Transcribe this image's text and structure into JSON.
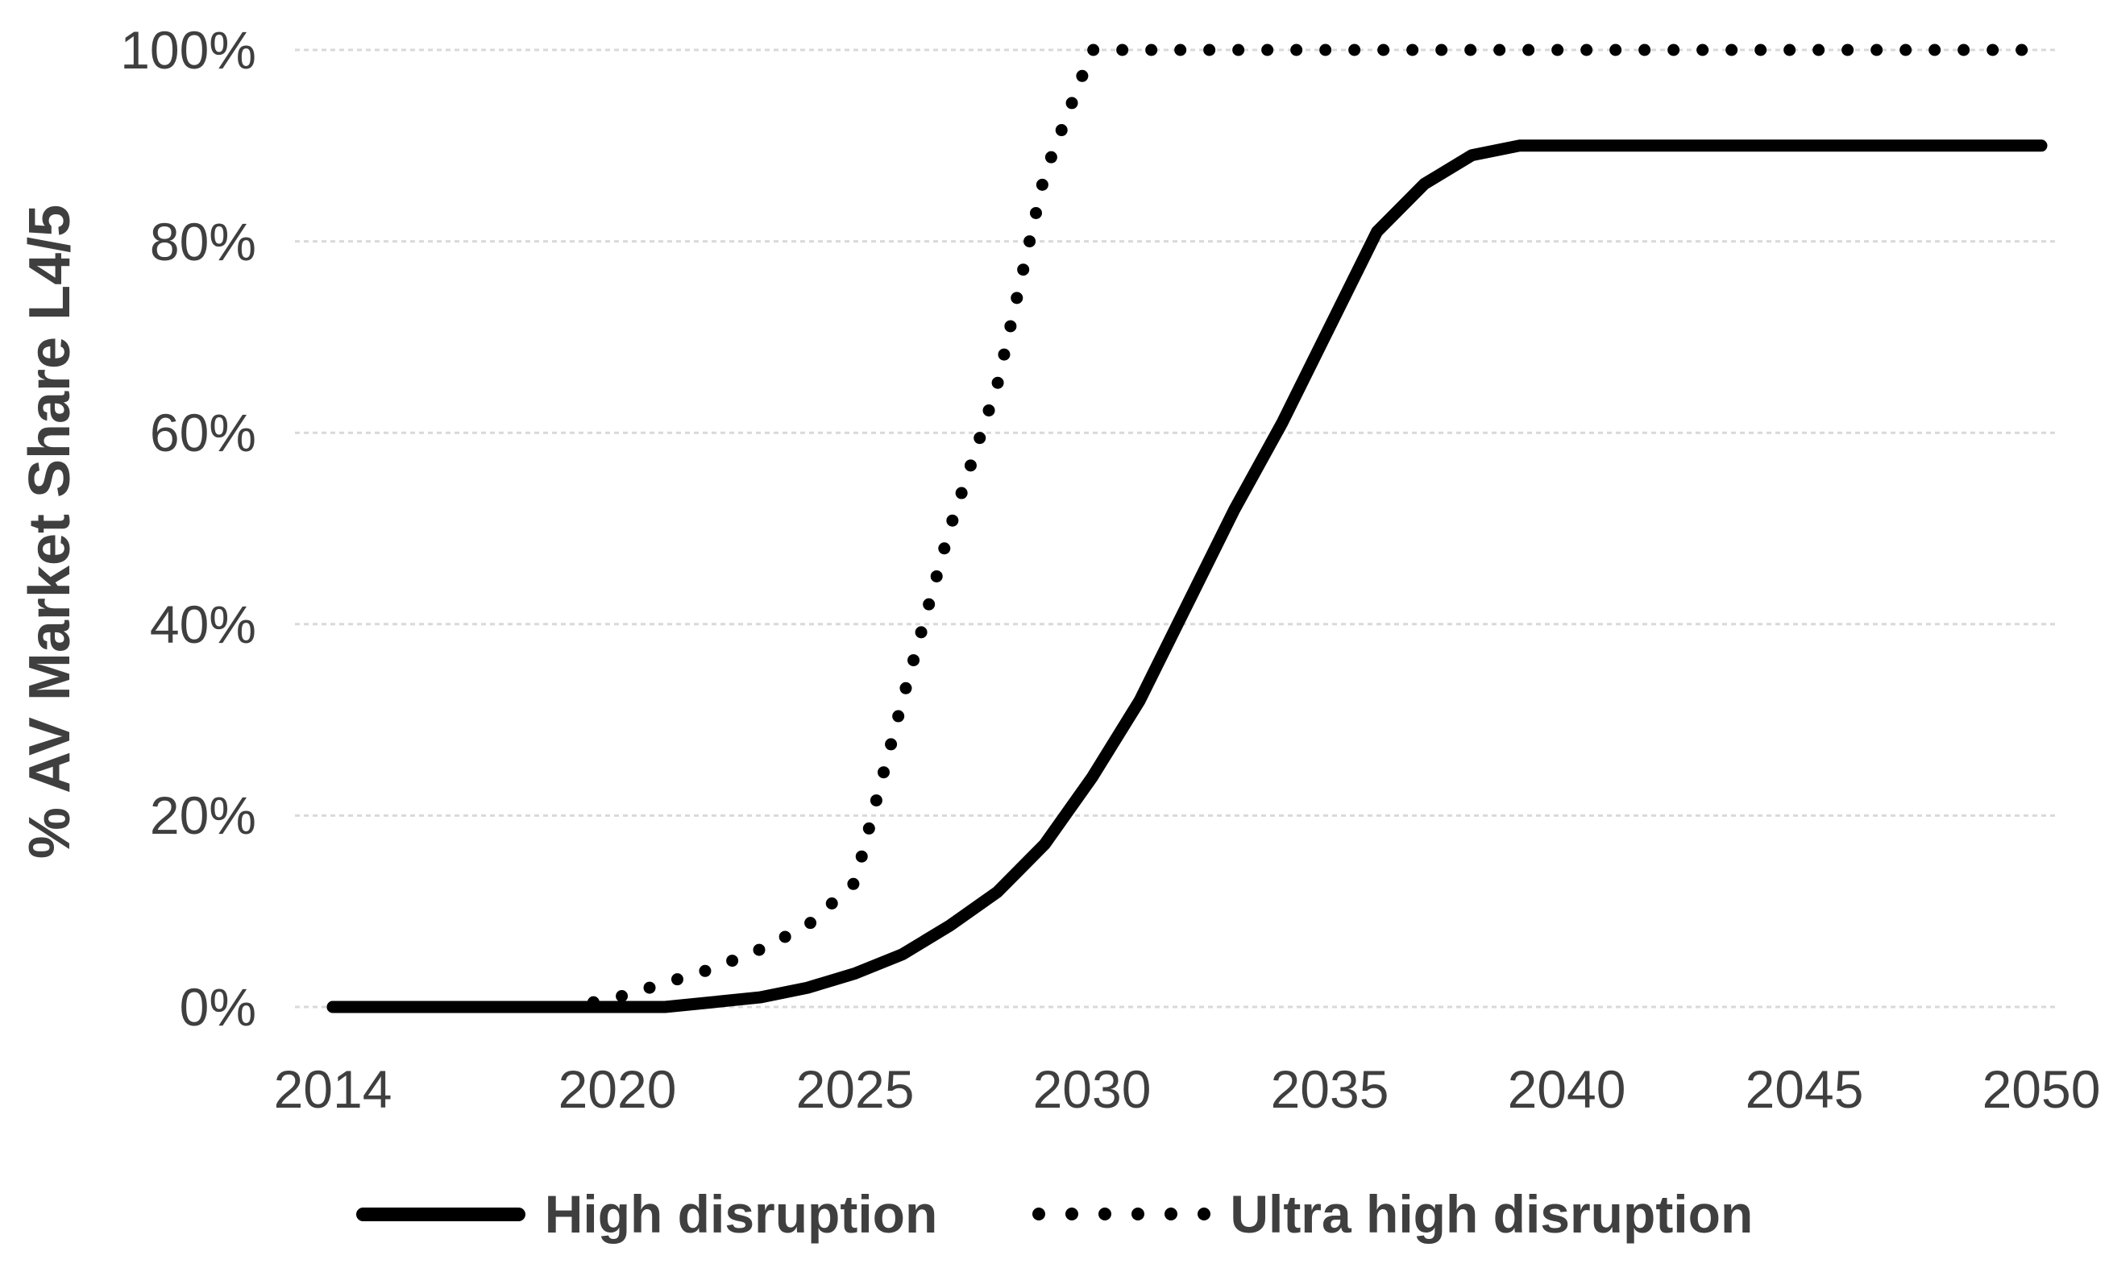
{
  "chart_data": {
    "type": "line",
    "title": "",
    "xlabel": "",
    "ylabel": "% AV Market Share L4/5",
    "x": [
      2014,
      2015,
      2016,
      2017,
      2018,
      2019,
      2020,
      2021,
      2022,
      2023,
      2024,
      2025,
      2026,
      2027,
      2028,
      2029,
      2030,
      2031,
      2032,
      2033,
      2034,
      2035,
      2036,
      2037,
      2038,
      2039,
      2040,
      2041,
      2042,
      2043,
      2044,
      2045,
      2046,
      2047,
      2048,
      2049,
      2050
    ],
    "series": [
      {
        "name": "High disruption",
        "style": "solid",
        "color": "#000000",
        "values": [
          0,
          0,
          0,
          0,
          0,
          0,
          0,
          0,
          0.5,
          1,
          2,
          3.5,
          5.5,
          8.5,
          12,
          17,
          24,
          32,
          42,
          52,
          61,
          71,
          81,
          86,
          89,
          90,
          90,
          90,
          90,
          90,
          90,
          90,
          90,
          90,
          90,
          90,
          90
        ]
      },
      {
        "name": "Ultra high disruption",
        "style": "dotted",
        "color": "#000000",
        "values": [
          0,
          0,
          0,
          0,
          0,
          0,
          1,
          2.5,
          4,
          6,
          8.5,
          13,
          32,
          50,
          65,
          87,
          100,
          100,
          100,
          100,
          100,
          100,
          100,
          100,
          100,
          100,
          100,
          100,
          100,
          100,
          100,
          100,
          100,
          100,
          100,
          100,
          100
        ]
      }
    ],
    "x_ticks": [
      2014,
      2020,
      2025,
      2030,
      2035,
      2040,
      2045,
      2050
    ],
    "y_tick_values": [
      0,
      20,
      40,
      60,
      80,
      100
    ],
    "y_ticks": [
      "0%",
      "20%",
      "40%",
      "60%",
      "80%",
      "100%"
    ],
    "ylim": [
      0,
      100
    ],
    "grid": true,
    "legend_position": "bottom",
    "gridline_color": "#d9d9d9",
    "text_color": "#3f3f3f",
    "background_color": "#ffffff"
  }
}
